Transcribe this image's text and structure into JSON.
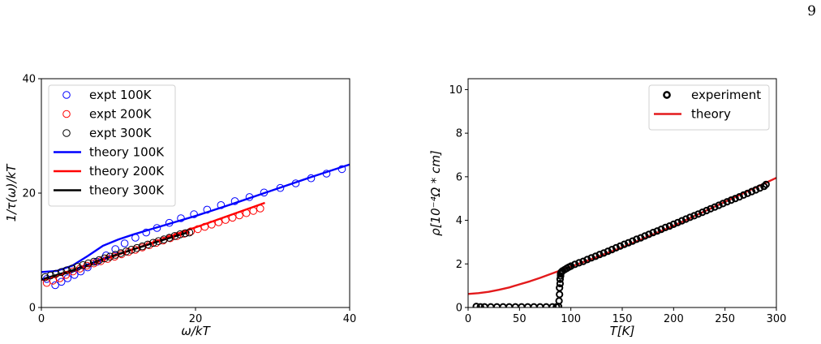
{
  "page_number": "9",
  "chart_data": [
    {
      "type": "scatter",
      "title": "",
      "xlabel": "ω/kT",
      "ylabel": "1/τ(ω)/kT",
      "xlim": [
        0,
        40
      ],
      "ylim": [
        0,
        40
      ],
      "xticks": [
        0,
        20,
        40
      ],
      "yticks": [
        0,
        20,
        40
      ],
      "grid": false,
      "legend": "top-left",
      "series": [
        {
          "name": "expt 100K",
          "kind": "markers",
          "color": "#0000ff",
          "x": [
            0.7,
            1.8,
            2.6,
            3.4,
            4.3,
            5.1,
            6.0,
            7.2,
            8.4,
            9.6,
            10.8,
            12.2,
            13.6,
            15.0,
            16.6,
            18.1,
            19.8,
            21.5,
            23.3,
            25.1,
            27.0,
            28.9,
            31.0,
            33.0,
            35.0,
            37.0,
            39.0
          ],
          "y": [
            5.0,
            3.9,
            4.5,
            5.1,
            5.7,
            6.3,
            7.0,
            8.0,
            9.1,
            10.2,
            11.2,
            12.2,
            13.1,
            13.9,
            14.8,
            15.6,
            16.3,
            17.1,
            17.9,
            18.6,
            19.3,
            20.1,
            20.9,
            21.7,
            22.6,
            23.4,
            24.2
          ]
        },
        {
          "name": "expt 200K",
          "kind": "markers",
          "color": "#ff0000",
          "x": [
            0.7,
            1.5,
            2.4,
            3.2,
            4.1,
            5.0,
            5.9,
            6.8,
            7.7,
            8.6,
            9.5,
            10.4,
            11.3,
            12.2,
            13.1,
            14.0,
            14.9,
            15.8,
            16.7,
            17.6,
            18.5,
            19.4,
            20.3,
            21.2,
            22.1,
            23.0,
            23.9,
            24.8,
            25.7,
            26.6,
            27.5,
            28.4
          ],
          "y": [
            4.3,
            4.7,
            5.1,
            5.7,
            6.3,
            6.8,
            7.3,
            7.7,
            8.1,
            8.5,
            8.9,
            9.3,
            9.7,
            10.1,
            10.5,
            10.9,
            11.3,
            11.7,
            12.1,
            12.5,
            12.9,
            13.3,
            13.7,
            14.1,
            14.5,
            14.9,
            15.3,
            15.7,
            16.1,
            16.5,
            16.9,
            17.3
          ]
        },
        {
          "name": "expt 300K",
          "kind": "markers",
          "color": "#000000",
          "x": [
            0.5,
            1.2,
            1.9,
            2.6,
            3.3,
            4.0,
            4.7,
            5.4,
            6.1,
            6.8,
            7.5,
            8.2,
            8.9,
            9.6,
            10.3,
            11.0,
            11.7,
            12.4,
            13.1,
            13.8,
            14.5,
            15.2,
            15.9,
            16.6,
            17.3,
            18.0,
            18.7,
            19.2
          ],
          "y": [
            5.3,
            5.6,
            5.9,
            6.2,
            6.5,
            6.8,
            7.1,
            7.4,
            7.7,
            8.0,
            8.3,
            8.6,
            8.9,
            9.2,
            9.5,
            9.8,
            10.1,
            10.4,
            10.7,
            11.0,
            11.3,
            11.6,
            11.9,
            12.2,
            12.5,
            12.8,
            13.0,
            13.1
          ]
        },
        {
          "name": "theory 100K",
          "kind": "line",
          "color": "#0000ff",
          "x": [
            0,
            2,
            4,
            6,
            8,
            10,
            12,
            14,
            16,
            20,
            25,
            30,
            35,
            40
          ],
          "y": [
            6.2,
            6.4,
            7.3,
            9.0,
            10.8,
            11.9,
            12.8,
            13.6,
            14.4,
            16.0,
            18.2,
            20.5,
            22.8,
            25.0
          ]
        },
        {
          "name": "theory 200K",
          "kind": "line",
          "color": "#ff0000",
          "x": [
            0,
            4,
            8,
            12,
            16,
            20,
            24,
            29
          ],
          "y": [
            4.8,
            6.3,
            8.3,
            10.2,
            12.1,
            14.0,
            15.9,
            18.3
          ]
        },
        {
          "name": "theory 300K",
          "kind": "line",
          "color": "#000000",
          "x": [
            0,
            4,
            8,
            12,
            16,
            19.2
          ],
          "y": [
            4.9,
            6.5,
            8.5,
            10.2,
            11.9,
            13.2
          ]
        }
      ]
    },
    {
      "type": "scatter",
      "title": "",
      "xlabel": "T[K]",
      "ylabel": "ρ[10⁻⁴Ω * cm]",
      "xlim": [
        0,
        300
      ],
      "ylim": [
        0,
        10.5
      ],
      "xticks": [
        0,
        50,
        100,
        150,
        200,
        250,
        300
      ],
      "yticks": [
        0,
        2,
        4,
        6,
        8,
        10
      ],
      "grid": false,
      "legend": "top-right",
      "series": [
        {
          "name": "experiment",
          "kind": "markers",
          "color": "#000000",
          "x": [
            8,
            12,
            16,
            22,
            28,
            34,
            40,
            46,
            52,
            58,
            64,
            70,
            76,
            82,
            86,
            88,
            88.5,
            89,
            89,
            89.5,
            89.5,
            90,
            90,
            90.5,
            91,
            92,
            94,
            96,
            98,
            100,
            104,
            108,
            112,
            116,
            120,
            124,
            128,
            132,
            136,
            140,
            144,
            148,
            152,
            156,
            160,
            164,
            168,
            172,
            176,
            180,
            184,
            188,
            192,
            196,
            200,
            204,
            208,
            212,
            216,
            220,
            224,
            228,
            232,
            236,
            240,
            244,
            248,
            252,
            256,
            260,
            264,
            268,
            272,
            276,
            280,
            284,
            288,
            290
          ],
          "y": [
            0.05,
            0.03,
            0.03,
            0.03,
            0.03,
            0.03,
            0.03,
            0.03,
            0.03,
            0.03,
            0.03,
            0.03,
            0.03,
            0.03,
            0.03,
            0.05,
            0.3,
            0.6,
            0.9,
            1.1,
            1.3,
            1.45,
            1.55,
            1.6,
            1.64,
            1.68,
            1.74,
            1.8,
            1.85,
            1.9,
            1.98,
            2.05,
            2.12,
            2.2,
            2.28,
            2.35,
            2.43,
            2.5,
            2.58,
            2.66,
            2.74,
            2.82,
            2.9,
            2.97,
            3.05,
            3.13,
            3.2,
            3.28,
            3.36,
            3.44,
            3.51,
            3.59,
            3.67,
            3.74,
            3.82,
            3.9,
            3.98,
            4.06,
            4.14,
            4.21,
            4.29,
            4.37,
            4.45,
            4.53,
            4.61,
            4.69,
            4.77,
            4.85,
            4.93,
            5.0,
            5.08,
            5.16,
            5.24,
            5.32,
            5.4,
            5.48,
            5.56,
            5.65
          ]
        },
        {
          "name": "theory",
          "kind": "line",
          "color": "#e31a1c",
          "x": [
            0,
            10,
            20,
            30,
            40,
            50,
            60,
            70,
            80,
            90,
            100,
            120,
            150,
            200,
            250,
            300
          ],
          "y": [
            0.62,
            0.66,
            0.72,
            0.81,
            0.92,
            1.06,
            1.2,
            1.36,
            1.53,
            1.7,
            1.87,
            2.22,
            2.76,
            3.75,
            4.85,
            5.95
          ]
        }
      ]
    }
  ]
}
